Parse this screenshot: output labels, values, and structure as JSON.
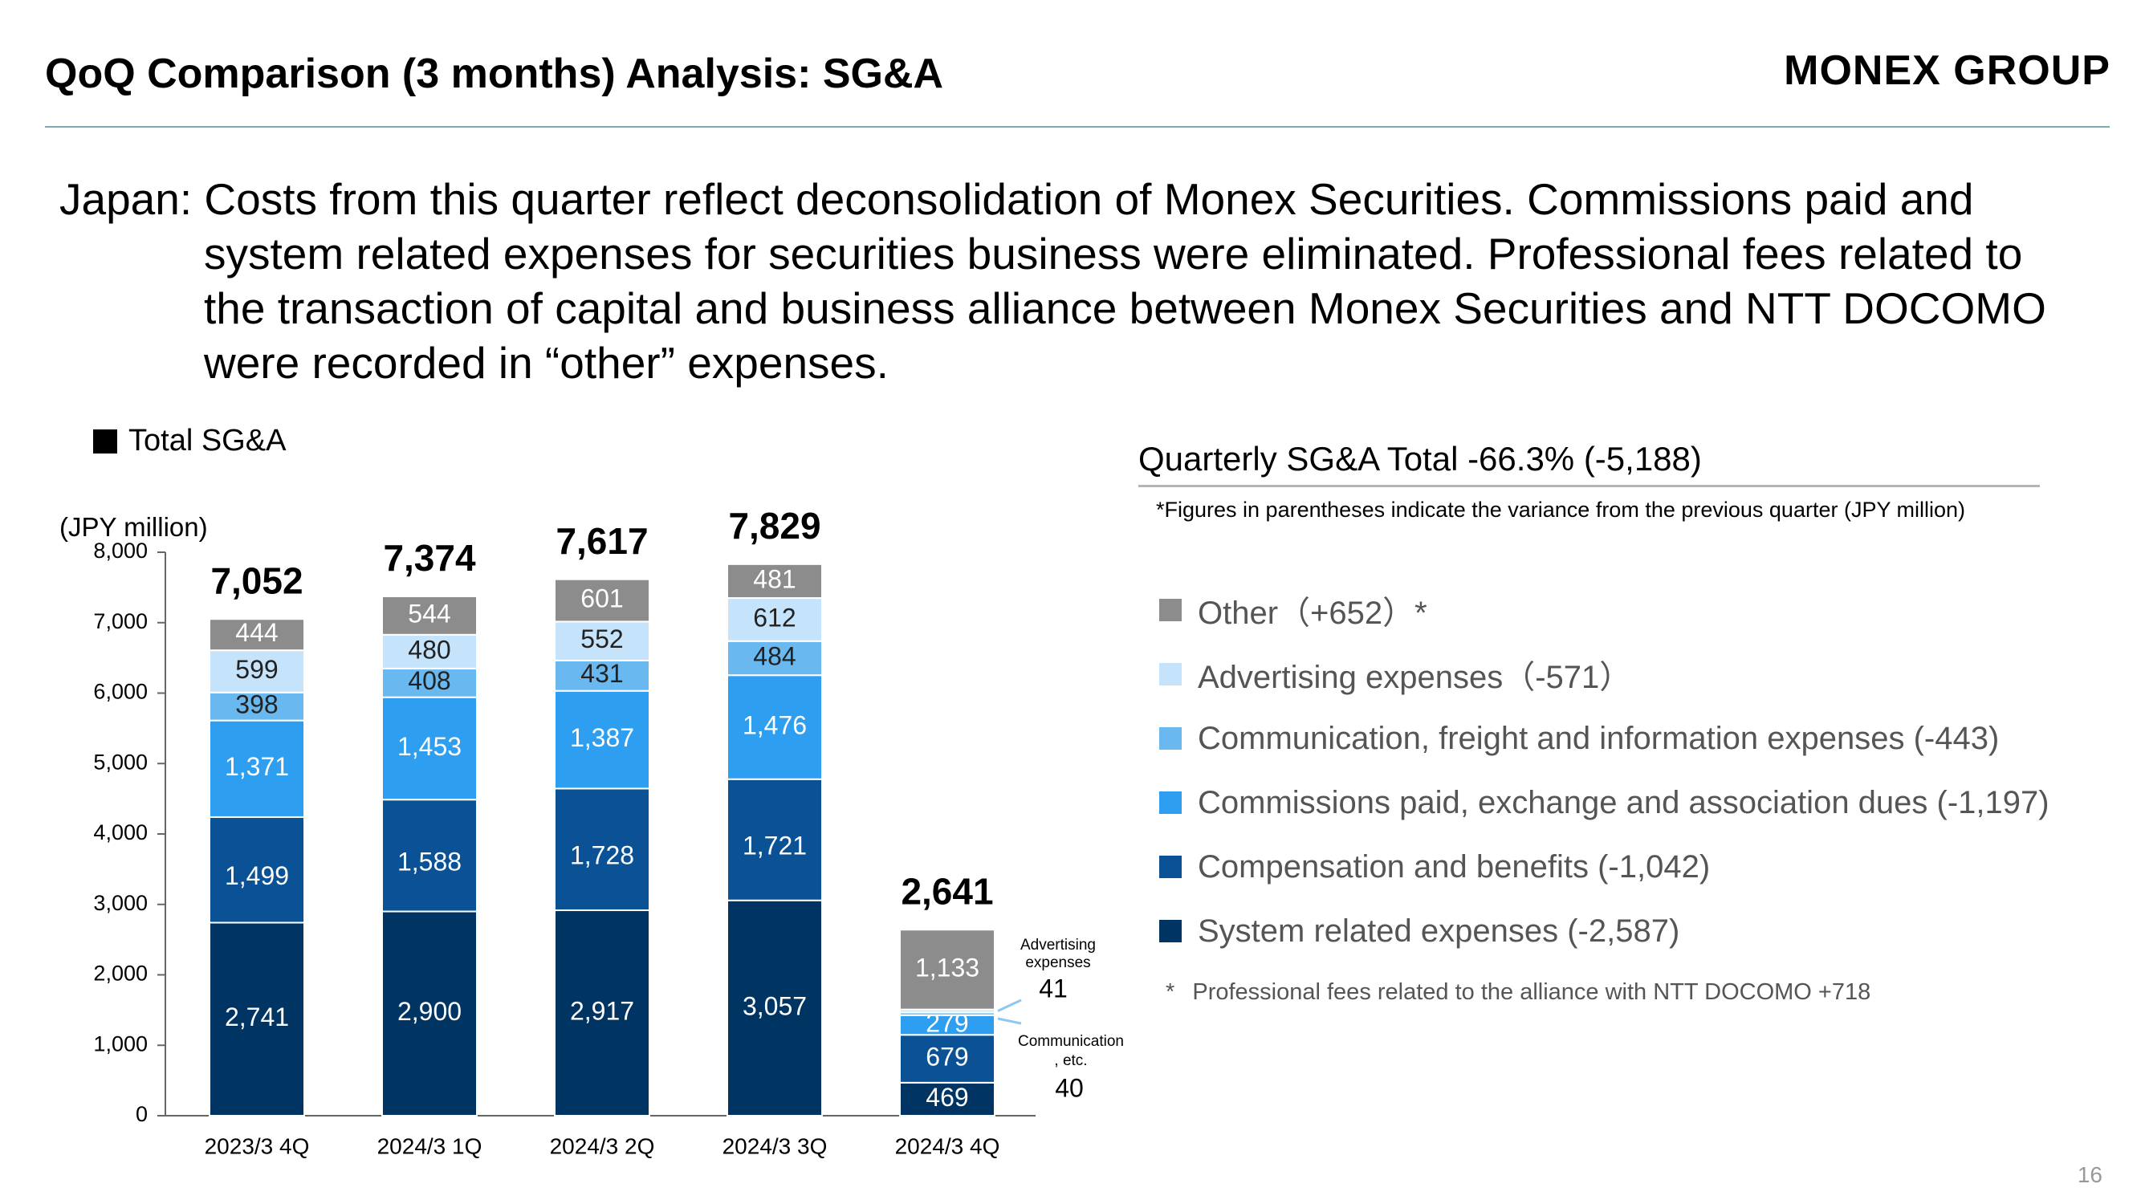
{
  "header": {
    "title": "QoQ Comparison (3 months) Analysis: SG&A",
    "brand": "MONEX GROUP"
  },
  "lead": {
    "line1": "Japan: Costs from this quarter reflect deconsolidation of Monex Securities. Commissions paid and",
    "line2": "system related expenses for securities business were eliminated. Professional fees related to",
    "line3": "the transaction of capital and business alliance between Monex Securities and NTT DOCOMO",
    "line4": "were recorded in “other” expenses."
  },
  "legend_top": "Total SG&A",
  "unit_label": "(JPY million)",
  "right_panel": {
    "title": "Quarterly SG&A Total -66.3% (-5,188)",
    "note": "*Figures in parentheses indicate the variance from the previous quarter (JPY million)",
    "items": [
      {
        "label": "Other（+652）*",
        "color": "#8c8c8c"
      },
      {
        "label": "Advertising expenses（-571）",
        "color": "#c5e4fb"
      },
      {
        "label": "Communication, freight and information expenses (-443)",
        "color": "#6ab8f0"
      },
      {
        "label": "Commissions paid, exchange and association dues (-1,197)",
        "color": "#2e9ef0"
      },
      {
        "label": "Compensation and benefits (-1,042)",
        "color": "#0a5196"
      },
      {
        "label": "System related expenses (-2,587)",
        "color": "#003462"
      }
    ],
    "footnote_star": "*",
    "footnote": "Professional fees related to the alliance with NTT DOCOMO +718"
  },
  "annotations": {
    "advertising_label1": "Advertising",
    "advertising_label2": "expenses",
    "advertising_value": "41",
    "communication_label1": "Communication",
    "communication_label2": ", etc.",
    "communication_value": "40"
  },
  "page_number": "16",
  "chart_data": {
    "type": "bar",
    "stacked": true,
    "categories": [
      "2023/3 4Q",
      "2024/3 1Q",
      "2024/3 2Q",
      "2024/3 3Q",
      "2024/3 4Q"
    ],
    "series": [
      {
        "name": "System related expenses",
        "color": "#003462",
        "values": [
          2741,
          2900,
          2917,
          3057,
          469
        ]
      },
      {
        "name": "Compensation and benefits",
        "color": "#0a5196",
        "values": [
          1499,
          1588,
          1728,
          1721,
          679
        ]
      },
      {
        "name": "Commissions paid, exchange and association dues",
        "color": "#2e9ef0",
        "values": [
          1371,
          1453,
          1387,
          1476,
          279
        ]
      },
      {
        "name": "Communication, freight and information expenses",
        "color": "#6ab8f0",
        "values": [
          398,
          408,
          431,
          484,
          40
        ]
      },
      {
        "name": "Advertising expenses",
        "color": "#c5e4fb",
        "values": [
          599,
          480,
          552,
          612,
          41
        ]
      },
      {
        "name": "Other",
        "color": "#8c8c8c",
        "values": [
          444,
          544,
          601,
          481,
          1133
        ]
      }
    ],
    "totals": [
      "7,052",
      "7,374",
      "7,617",
      "7,829",
      "2,641"
    ],
    "value_labels": [
      [
        "2,741",
        "1,499",
        "1,371",
        "398",
        "599",
        "444"
      ],
      [
        "2,900",
        "1,588",
        "1,453",
        "408",
        "480",
        "544"
      ],
      [
        "2,917",
        "1,728",
        "1,387",
        "431",
        "552",
        "601"
      ],
      [
        "3,057",
        "1,721",
        "1,476",
        "484",
        "612",
        "481"
      ],
      [
        "469",
        "679",
        "279",
        "",
        "",
        "1,133"
      ]
    ],
    "yticks": [
      "0",
      "1,000",
      "2,000",
      "3,000",
      "4,000",
      "5,000",
      "6,000",
      "7,000",
      "8,000"
    ],
    "ylim": [
      0,
      8000
    ],
    "ylabel": "(JPY million)",
    "legend": "right"
  }
}
